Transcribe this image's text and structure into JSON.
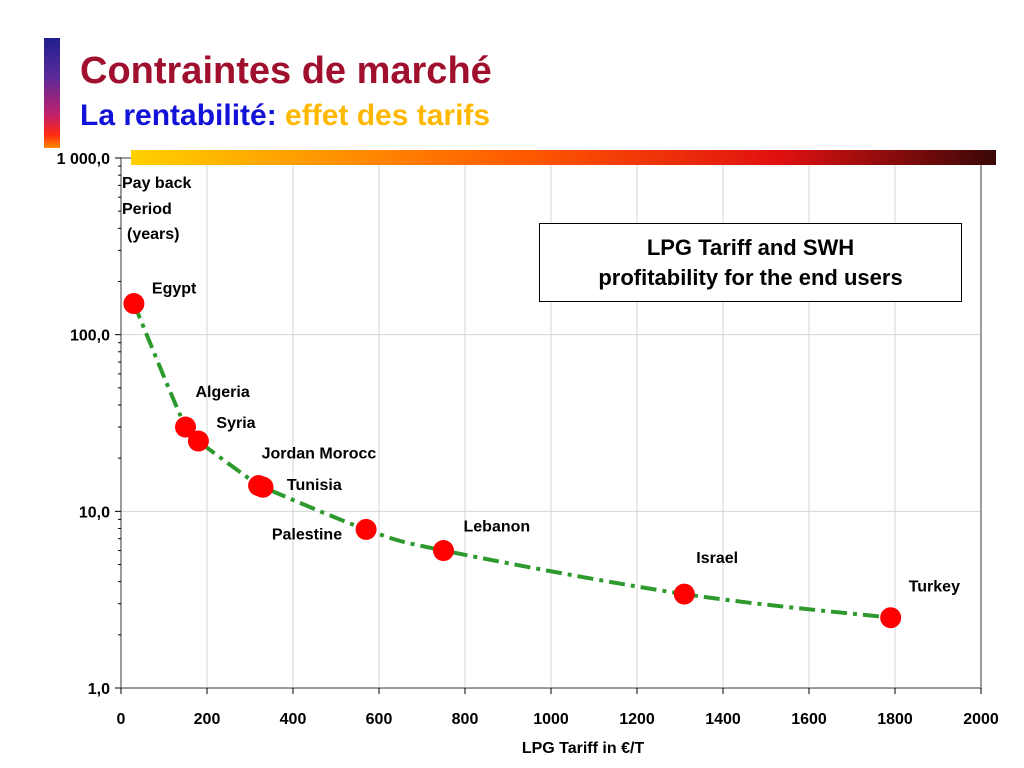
{
  "title": "Contraintes de marché",
  "subtitle": {
    "part1": "La rentabilité:",
    "part2": "effet des tarifs"
  },
  "colors": {
    "title": "#a0102e",
    "subtitle_part1": "#1212d8",
    "subtitle_part2": "#ffb800",
    "points": "#ff0000",
    "trend": "#2e9a2e"
  },
  "chart_data": {
    "type": "scatter",
    "title": "",
    "xlabel": "LPG Tariff in €/T",
    "ylabel_lines": [
      "Pay back",
      "Period",
      "(years)"
    ],
    "xlim": [
      0,
      2000
    ],
    "ylim": [
      1,
      1000
    ],
    "y_scale": "log",
    "xticks": [
      0,
      200,
      400,
      600,
      800,
      1000,
      1200,
      1400,
      1600,
      1800,
      2000
    ],
    "xtick_labels": [
      "0",
      "200",
      "400",
      "600",
      "800",
      "1000",
      "1200",
      "1400",
      "1600",
      "1800",
      "2000"
    ],
    "yticks": [
      1,
      10,
      100,
      1000
    ],
    "ytick_labels": [
      "1,0",
      "10,0",
      "100,0",
      "1 000,0"
    ],
    "grid": true,
    "trendline": "dashed green curve through points",
    "points": [
      {
        "label": "Egypt",
        "x": 30,
        "y": 150
      },
      {
        "label": "Algeria",
        "x": 150,
        "y": 30
      },
      {
        "label": "Syria",
        "x": 180,
        "y": 25
      },
      {
        "label": "Jordan Morocc",
        "x": 320,
        "y": 14
      },
      {
        "label": "",
        "x": 330,
        "y": 13.7
      },
      {
        "label": "Tunisia",
        "x": 330,
        "y": 13.7
      },
      {
        "label": "Palestine",
        "x": 570,
        "y": 7.9
      },
      {
        "label": "Lebanon",
        "x": 750,
        "y": 6
      },
      {
        "label": "Israel",
        "x": 1310,
        "y": 3.4
      },
      {
        "label": "Turkey",
        "x": 1790,
        "y": 2.5
      }
    ],
    "annotation": [
      "LPG Tariff and SWH",
      "profitability for the end users"
    ]
  }
}
